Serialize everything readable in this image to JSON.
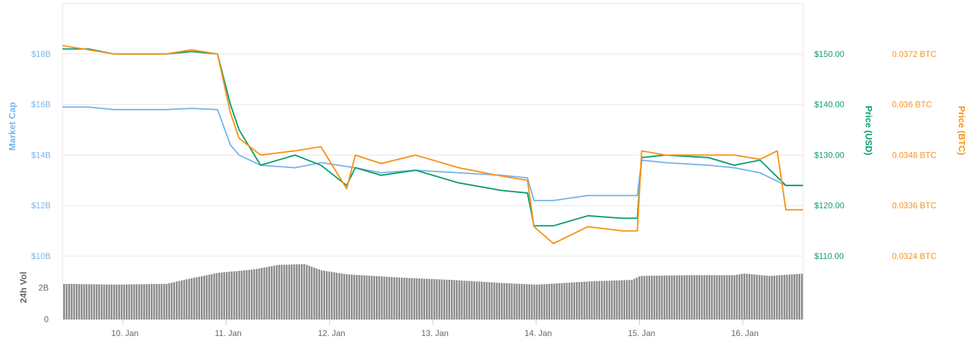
{
  "chart_data": {
    "type": "line",
    "colors": {
      "market_cap": "#7cb5ec",
      "price_usd": "#0e9f6e",
      "price_btc": "#f7931a",
      "volume": "#8a8a8a"
    },
    "x_axis": {
      "type": "datetime",
      "range": [
        "9. Jan 10:00",
        "16. Jan 14:00"
      ],
      "tick_labels": [
        "10. Jan",
        "11. Jan",
        "12. Jan",
        "13. Jan",
        "14. Jan",
        "15. Jan",
        "16. Jan"
      ]
    },
    "y_axes": {
      "market_cap": {
        "title": "Market Cap",
        "unit": "billion USD",
        "range": [
          10,
          20
        ],
        "tick_values": [
          10,
          12,
          14,
          16,
          18
        ],
        "tick_labels": [
          "$10B",
          "$12B",
          "$14B",
          "$16B",
          "$18B"
        ]
      },
      "price_usd": {
        "title": "Price (USD)",
        "range": [
          110,
          160
        ],
        "tick_values": [
          110,
          120,
          130,
          140,
          150
        ],
        "tick_labels": [
          "$110.00",
          "$120.00",
          "$130.00",
          "$140.00",
          "$150.00"
        ]
      },
      "price_btc": {
        "title": "Price (BTC)",
        "range": [
          0.0324,
          0.0384
        ],
        "tick_values": [
          0.0324,
          0.0336,
          0.0348,
          0.036,
          0.0372
        ],
        "tick_labels": [
          "0.0324 BTC",
          "0.0336 BTC",
          "0.0348 BTC",
          "0.036 BTC",
          "0.0372 BTC"
        ]
      },
      "volume": {
        "title": "24h Vol",
        "unit": "billion USD",
        "range": [
          0,
          4
        ],
        "tick_values": [
          0,
          2
        ],
        "tick_labels": [
          "0",
          "2B"
        ]
      }
    },
    "series": [
      {
        "name": "Market Cap",
        "axis": "market_cap",
        "x": [
          "9. Jan 10:00",
          "9. Jan 16:00",
          "9. Jan 22:00",
          "10. Jan 04:00",
          "10. Jan 10:00",
          "10. Jan 16:00",
          "10. Jan 22:00",
          "11. Jan 01:00",
          "11. Jan 03:00",
          "11. Jan 08:00",
          "11. Jan 16:00",
          "11. Jan 22:00",
          "12. Jan 06:00",
          "12. Jan 12:00",
          "12. Jan 20:00",
          "13. Jan 06:00",
          "13. Jan 16:00",
          "13. Jan 22:00",
          "13. Jan 23:30",
          "14. Jan 04:00",
          "14. Jan 12:00",
          "14. Jan 20:00",
          "14. Jan 23:30",
          "15. Jan 00:30",
          "15. Jan 06:00",
          "15. Jan 16:00",
          "15. Jan 22:00",
          "16. Jan 04:00",
          "16. Jan 10:00",
          "16. Jan 14:00"
        ],
        "values": [
          15.9,
          15.9,
          15.8,
          15.8,
          15.8,
          15.85,
          15.8,
          14.4,
          14.0,
          13.6,
          13.5,
          13.7,
          13.5,
          13.3,
          13.4,
          13.3,
          13.2,
          13.1,
          12.2,
          12.2,
          12.4,
          12.4,
          12.4,
          13.8,
          13.7,
          13.6,
          13.5,
          13.3,
          12.8,
          12.8
        ]
      },
      {
        "name": "Price (USD)",
        "axis": "price_usd",
        "x": [
          "9. Jan 10:00",
          "9. Jan 16:00",
          "9. Jan 22:00",
          "10. Jan 04:00",
          "10. Jan 10:00",
          "10. Jan 16:00",
          "10. Jan 22:00",
          "11. Jan 01:00",
          "11. Jan 03:00",
          "11. Jan 08:00",
          "11. Jan 16:00",
          "11. Jan 22:00",
          "12. Jan 04:00",
          "12. Jan 06:00",
          "12. Jan 12:00",
          "12. Jan 20:00",
          "13. Jan 06:00",
          "13. Jan 16:00",
          "13. Jan 22:00",
          "13. Jan 23:30",
          "14. Jan 04:00",
          "14. Jan 12:00",
          "14. Jan 20:00",
          "14. Jan 23:30",
          "15. Jan 00:30",
          "15. Jan 06:00",
          "15. Jan 16:00",
          "15. Jan 22:00",
          "16. Jan 04:00",
          "16. Jan 10:00",
          "16. Jan 14:00"
        ],
        "values": [
          151.0,
          151.0,
          150.0,
          150.0,
          150.0,
          150.5,
          150.0,
          140.0,
          135.0,
          128.0,
          130.0,
          128.0,
          124.0,
          127.5,
          126.0,
          127.0,
          124.5,
          123.0,
          122.5,
          116.0,
          116.0,
          118.0,
          117.5,
          117.5,
          129.5,
          130.0,
          129.5,
          128.0,
          129.0,
          124.0,
          124.0
        ]
      },
      {
        "name": "Price (BTC)",
        "axis": "price_btc",
        "x": [
          "9. Jan 10:00",
          "9. Jan 16:00",
          "9. Jan 22:00",
          "10. Jan 04:00",
          "10. Jan 10:00",
          "10. Jan 16:00",
          "10. Jan 22:00",
          "11. Jan 01:00",
          "11. Jan 03:00",
          "11. Jan 08:00",
          "11. Jan 16:00",
          "11. Jan 22:00",
          "12. Jan 04:00",
          "12. Jan 06:00",
          "12. Jan 12:00",
          "12. Jan 20:00",
          "13. Jan 06:00",
          "13. Jan 16:00",
          "13. Jan 22:00",
          "13. Jan 23:30",
          "14. Jan 04:00",
          "14. Jan 12:00",
          "14. Jan 20:00",
          "14. Jan 23:30",
          "15. Jan 00:30",
          "15. Jan 06:00",
          "15. Jan 16:00",
          "15. Jan 22:00",
          "16. Jan 04:00",
          "16. Jan 08:00",
          "16. Jan 10:00",
          "16. Jan 14:00"
        ],
        "values": [
          0.0374,
          0.0373,
          0.0372,
          0.0372,
          0.0372,
          0.0373,
          0.0372,
          0.0358,
          0.0352,
          0.0348,
          0.0349,
          0.035,
          0.034,
          0.0348,
          0.0346,
          0.0348,
          0.0345,
          0.0343,
          0.0342,
          0.0331,
          0.0327,
          0.0331,
          0.033,
          0.033,
          0.0349,
          0.0348,
          0.0348,
          0.0348,
          0.0347,
          0.0349,
          0.0335,
          0.0335
        ]
      },
      {
        "name": "24h Vol",
        "axis": "volume",
        "type": "bar",
        "x": [
          "9. Jan 10:00",
          "9. Jan 22:00",
          "10. Jan 10:00",
          "10. Jan 14:00",
          "10. Jan 22:00",
          "11. Jan 06:00",
          "11. Jan 12:00",
          "11. Jan 18:00",
          "11. Jan 22:00",
          "12. Jan 04:00",
          "12. Jan 16:00",
          "13. Jan 04:00",
          "13. Jan 16:00",
          "14. Jan 00:00",
          "14. Jan 12:00",
          "14. Jan 22:00",
          "15. Jan 00:00",
          "15. Jan 12:00",
          "15. Jan 22:00",
          "16. Jan 00:00",
          "16. Jan 06:00",
          "16. Jan 14:00"
        ],
        "values": [
          2.25,
          2.2,
          2.25,
          2.5,
          2.95,
          3.15,
          3.45,
          3.5,
          3.1,
          2.85,
          2.65,
          2.5,
          2.3,
          2.2,
          2.4,
          2.5,
          2.75,
          2.8,
          2.8,
          2.9,
          2.75,
          2.9
        ]
      }
    ]
  }
}
